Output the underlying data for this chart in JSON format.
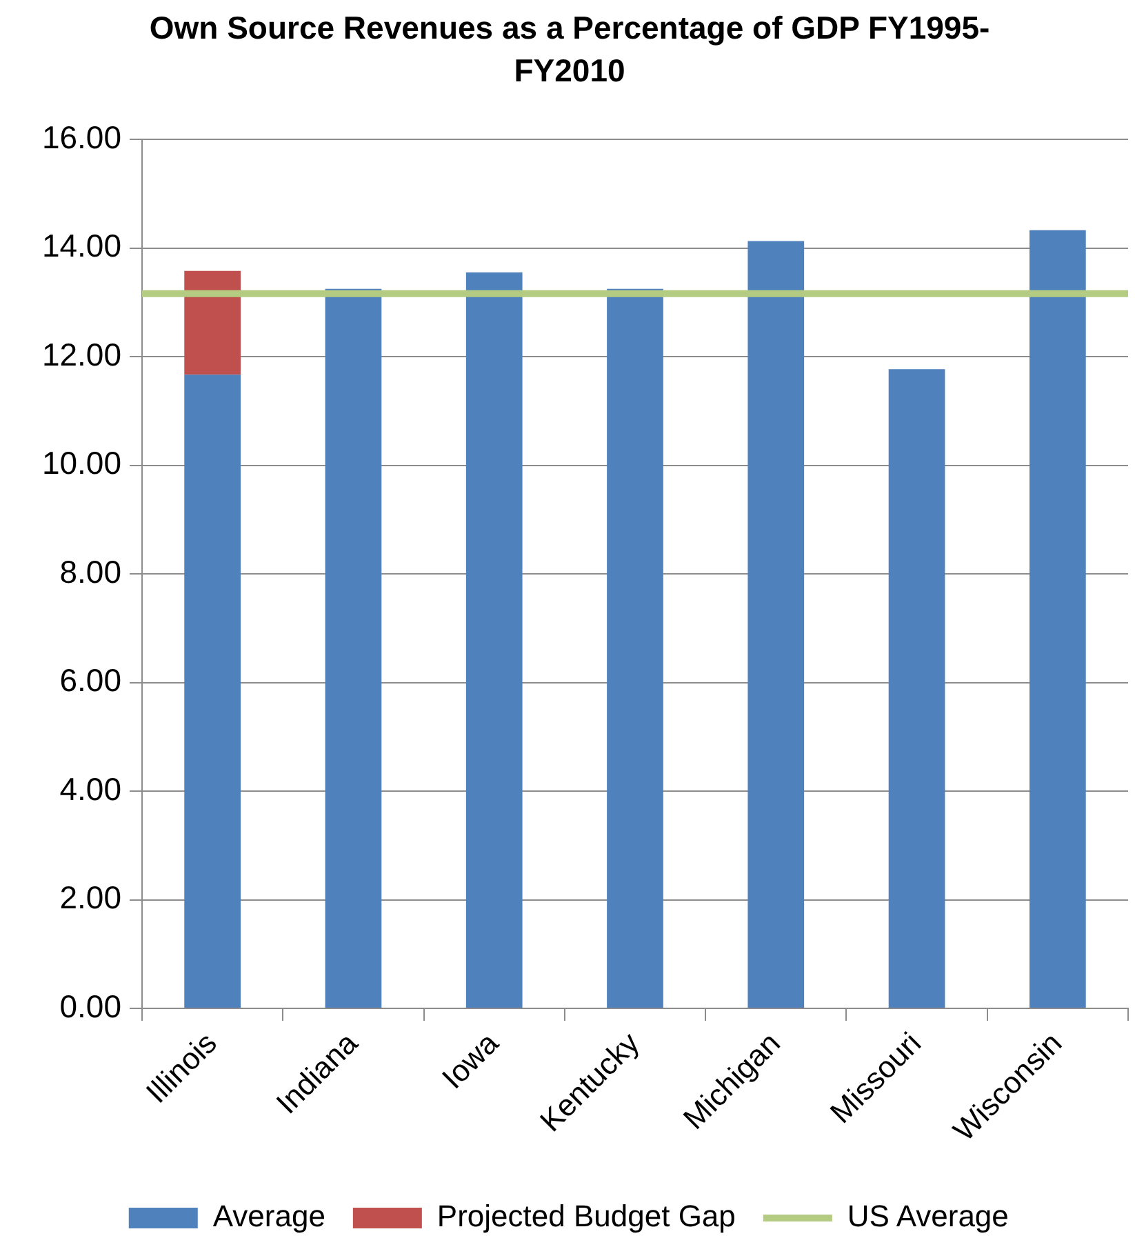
{
  "chart_data": {
    "type": "bar",
    "title": "Own Source Revenues as a Percentage of GDP FY1995-FY2010",
    "categories": [
      "Illinois",
      "Indiana",
      "Iowa",
      "Kentucky",
      "Michigan",
      "Missouri",
      "Wisconsin"
    ],
    "series": [
      {
        "name": "Average",
        "color": "#4f81bd",
        "values": [
          11.67,
          13.25,
          13.55,
          13.25,
          14.13,
          11.77,
          14.33
        ]
      },
      {
        "name": "Projected Budget Gap",
        "color": "#c0504d",
        "values": [
          1.91,
          null,
          null,
          null,
          null,
          null,
          null
        ]
      }
    ],
    "stacked": true,
    "ylim": [
      0,
      16
    ],
    "yticks": [
      {
        "value": 0,
        "label": "0.00"
      },
      {
        "value": 2,
        "label": "2.00"
      },
      {
        "value": 4,
        "label": "4.00"
      },
      {
        "value": 6,
        "label": "6.00"
      },
      {
        "value": 8,
        "label": "8.00"
      },
      {
        "value": 10,
        "label": "10.00"
      },
      {
        "value": 12,
        "label": "12.00"
      },
      {
        "value": 14,
        "label": "14.00"
      },
      {
        "value": 16,
        "label": "16.00"
      }
    ],
    "grid": "y",
    "legend": "bottom",
    "ref_lines": [
      {
        "axis": "y",
        "value": 13.16,
        "label": "US Average",
        "color": "#b3cc82"
      }
    ]
  }
}
